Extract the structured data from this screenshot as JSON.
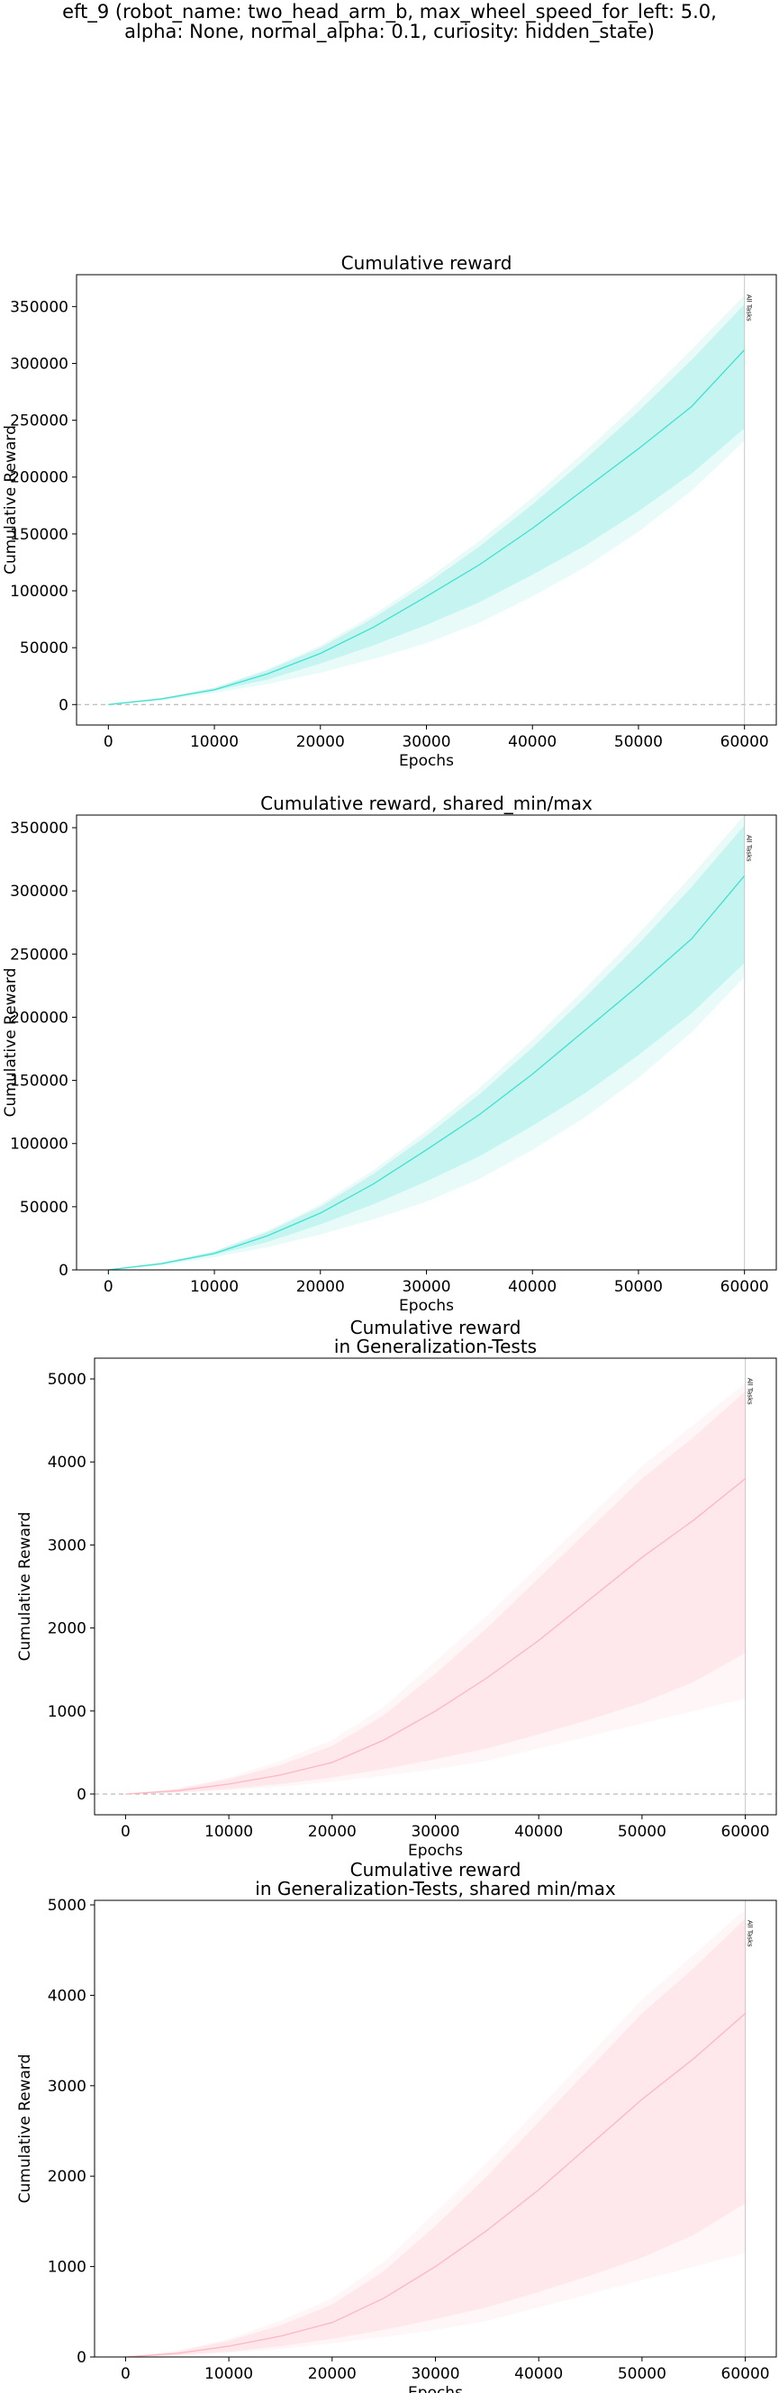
{
  "suptitle": {
    "line1": "eft_9 (robot_name: two_head_arm_b, max_wheel_speed_for_left: 5.0,",
    "line2": "alpha: None, normal_alpha: 0.1, curiosity: hidden_state)"
  },
  "chart_data": [
    {
      "type": "area",
      "title_lines": [
        "Cumulative reward"
      ],
      "xlabel": "Epochs",
      "ylabel": "Cumulative Reward",
      "xlim": [
        -3000,
        63000
      ],
      "ylim": [
        -18000,
        378000
      ],
      "xticks": [
        0,
        10000,
        20000,
        30000,
        40000,
        50000,
        60000
      ],
      "yticks": [
        0,
        50000,
        100000,
        150000,
        200000,
        250000,
        300000,
        350000
      ],
      "zero_line": true,
      "vline": {
        "x": 60000,
        "label": "All Tasks"
      },
      "color": "#40e0d0",
      "x": [
        0,
        5000,
        10000,
        15000,
        20000,
        25000,
        30000,
        35000,
        40000,
        45000,
        50000,
        55000,
        60000
      ],
      "mean": [
        0,
        5000,
        13000,
        27000,
        45000,
        68000,
        95000,
        123000,
        155000,
        190000,
        225000,
        262000,
        312000
      ],
      "band_inner": {
        "lower": [
          0,
          4000,
          12000,
          22000,
          36000,
          52000,
          70000,
          90000,
          114000,
          140000,
          170000,
          203000,
          243000
        ],
        "upper": [
          0,
          5500,
          14500,
          30000,
          50000,
          76000,
          106000,
          139000,
          176000,
          216000,
          258000,
          303000,
          352000
        ]
      },
      "band_outer": {
        "lower": [
          0,
          3500,
          10000,
          18000,
          28000,
          40000,
          54000,
          72000,
          95000,
          121000,
          152000,
          188000,
          232000
        ],
        "upper": [
          0,
          6000,
          15000,
          31000,
          52000,
          79000,
          110000,
          144000,
          182000,
          223000,
          266000,
          312000,
          360000
        ]
      }
    },
    {
      "type": "area",
      "title_lines": [
        "Cumulative reward, shared_min/max"
      ],
      "xlabel": "Epochs",
      "ylabel": "Cumulative Reward",
      "xlim": [
        -3000,
        63000
      ],
      "ylim": [
        0,
        360000
      ],
      "xticks": [
        0,
        10000,
        20000,
        30000,
        40000,
        50000,
        60000
      ],
      "yticks": [
        0,
        50000,
        100000,
        150000,
        200000,
        250000,
        300000,
        350000
      ],
      "zero_line": false,
      "vline": {
        "x": 60000,
        "label": "All Tasks"
      },
      "color": "#40e0d0",
      "x": [
        0,
        5000,
        10000,
        15000,
        20000,
        25000,
        30000,
        35000,
        40000,
        45000,
        50000,
        55000,
        60000
      ],
      "mean": [
        0,
        5000,
        13000,
        27000,
        45000,
        68000,
        95000,
        123000,
        155000,
        190000,
        225000,
        262000,
        312000
      ],
      "band_inner": {
        "lower": [
          0,
          4000,
          12000,
          22000,
          36000,
          52000,
          70000,
          90000,
          114000,
          140000,
          170000,
          203000,
          243000
        ],
        "upper": [
          0,
          5500,
          14500,
          30000,
          50000,
          76000,
          106000,
          139000,
          176000,
          216000,
          258000,
          303000,
          352000
        ]
      },
      "band_outer": {
        "lower": [
          0,
          3500,
          10000,
          18000,
          28000,
          40000,
          54000,
          72000,
          95000,
          121000,
          152000,
          188000,
          232000
        ],
        "upper": [
          0,
          6000,
          15000,
          31000,
          52000,
          79000,
          110000,
          144000,
          182000,
          223000,
          266000,
          312000,
          360000
        ]
      }
    },
    {
      "type": "area",
      "title_lines": [
        "Cumulative reward",
        "in Generalization-Tests"
      ],
      "xlabel": "Epochs",
      "ylabel": "Cumulative Reward",
      "xlim": [
        -3000,
        63000
      ],
      "ylim": [
        -250,
        5250
      ],
      "xticks": [
        0,
        10000,
        20000,
        30000,
        40000,
        50000,
        60000
      ],
      "yticks": [
        0,
        1000,
        2000,
        3000,
        4000,
        5000
      ],
      "zero_line": true,
      "vline": {
        "x": 60000,
        "label": "All Tasks"
      },
      "color": "#ffb6c1",
      "x": [
        0,
        5000,
        10000,
        15000,
        20000,
        25000,
        30000,
        35000,
        40000,
        45000,
        50000,
        55000,
        60000
      ],
      "mean": [
        0,
        40,
        120,
        230,
        380,
        650,
        1000,
        1400,
        1850,
        2350,
        2850,
        3300,
        3800
      ],
      "band_inner": {
        "lower": [
          0,
          20,
          60,
          120,
          200,
          300,
          420,
          550,
          720,
          900,
          1100,
          1350,
          1700
        ],
        "upper": [
          0,
          60,
          180,
          350,
          580,
          950,
          1450,
          2000,
          2600,
          3200,
          3800,
          4300,
          4850
        ]
      },
      "band_outer": {
        "lower": [
          0,
          15,
          45,
          90,
          150,
          220,
          300,
          400,
          550,
          700,
          850,
          1000,
          1150
        ],
        "upper": [
          0,
          70,
          200,
          400,
          650,
          1050,
          1600,
          2150,
          2750,
          3350,
          3950,
          4450,
          4950
        ]
      }
    },
    {
      "type": "area",
      "title_lines": [
        "Cumulative reward",
        "in Generalization-Tests, shared min/max"
      ],
      "xlabel": "Epochs",
      "ylabel": "Cumulative Reward",
      "xlim": [
        -3000,
        63000
      ],
      "ylim": [
        0,
        5050
      ],
      "xticks": [
        0,
        10000,
        20000,
        30000,
        40000,
        50000,
        60000
      ],
      "yticks": [
        0,
        1000,
        2000,
        3000,
        4000,
        5000
      ],
      "zero_line": false,
      "vline": {
        "x": 60000,
        "label": "All Tasks"
      },
      "color": "#ffb6c1",
      "x": [
        0,
        5000,
        10000,
        15000,
        20000,
        25000,
        30000,
        35000,
        40000,
        45000,
        50000,
        55000,
        60000
      ],
      "mean": [
        0,
        40,
        120,
        230,
        380,
        650,
        1000,
        1400,
        1850,
        2350,
        2850,
        3300,
        3800
      ],
      "band_inner": {
        "lower": [
          0,
          20,
          60,
          120,
          200,
          300,
          420,
          550,
          720,
          900,
          1100,
          1350,
          1700
        ],
        "upper": [
          0,
          60,
          180,
          350,
          580,
          950,
          1450,
          2000,
          2600,
          3200,
          3800,
          4300,
          4850
        ]
      },
      "band_outer": {
        "lower": [
          0,
          15,
          45,
          90,
          150,
          220,
          300,
          400,
          550,
          700,
          850,
          1000,
          1150
        ],
        "upper": [
          0,
          70,
          200,
          400,
          650,
          1050,
          1600,
          2150,
          2750,
          3350,
          3950,
          4450,
          4950
        ]
      }
    }
  ]
}
